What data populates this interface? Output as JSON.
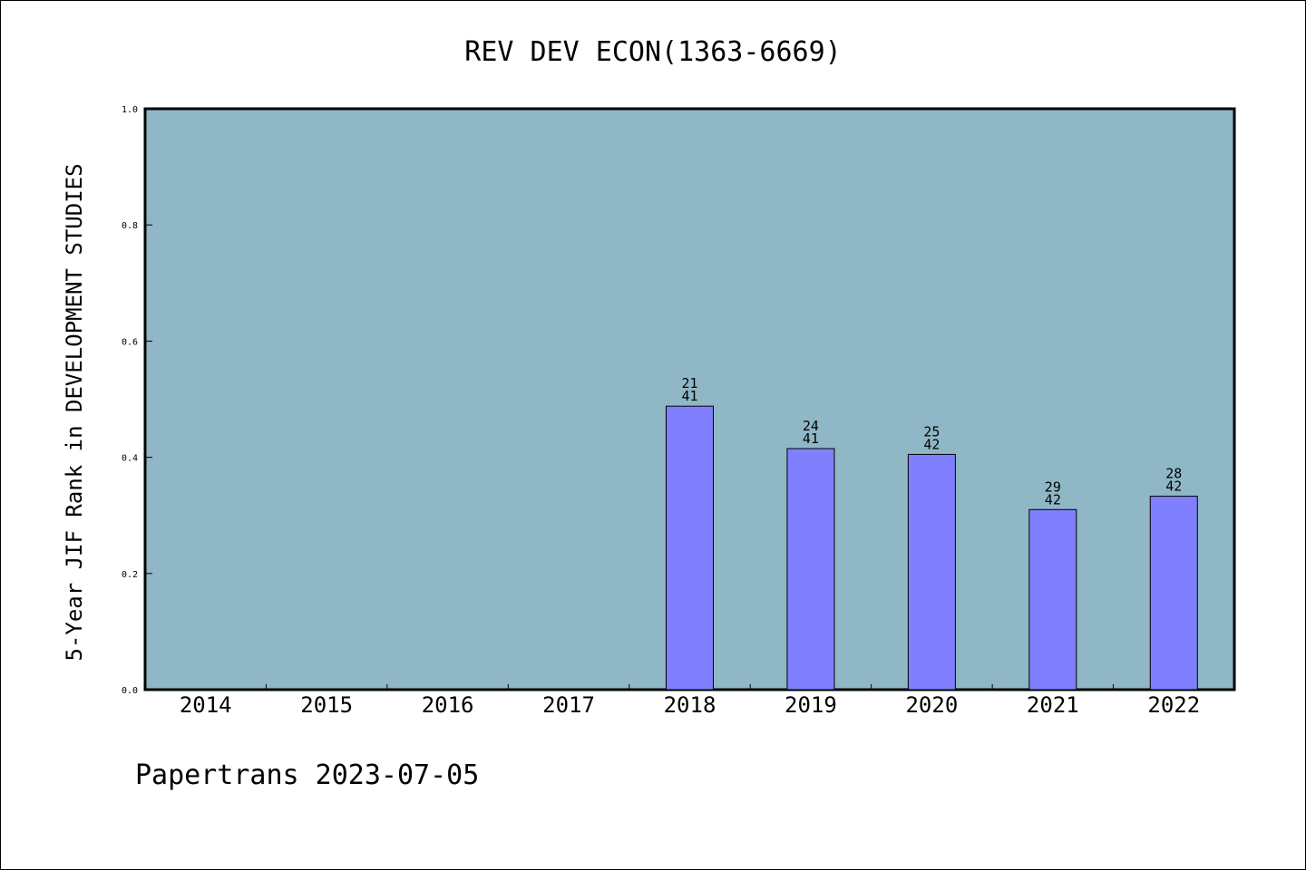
{
  "chart_data": {
    "type": "bar",
    "title": "REV DEV ECON(1363-6669)",
    "xlabel": "",
    "ylabel": "5-Year JIF Rank in DEVELOPMENT STUDIES",
    "categories": [
      "2014",
      "2015",
      "2016",
      "2017",
      "2018",
      "2019",
      "2020",
      "2021",
      "2022"
    ],
    "values": [
      null,
      null,
      null,
      null,
      0.488,
      0.415,
      0.405,
      0.31,
      0.333
    ],
    "data_labels": [
      null,
      null,
      null,
      null,
      {
        "rank": "21",
        "total": "41"
      },
      {
        "rank": "24",
        "total": "41"
      },
      {
        "rank": "25",
        "total": "42"
      },
      {
        "rank": "29",
        "total": "42"
      },
      {
        "rank": "28",
        "total": "42"
      }
    ],
    "ylim": [
      0,
      1.0
    ],
    "yticks": [
      "0.0",
      "0.2",
      "0.4",
      "0.6",
      "0.8",
      "1.0"
    ],
    "grid": false,
    "legend": "none",
    "colors": {
      "plot_background": "#8fb7c6",
      "bar_fill": "#8080ff",
      "bar_stroke": "#000000",
      "axes": "#000000"
    }
  },
  "footer": "Papertrans 2023-07-05"
}
